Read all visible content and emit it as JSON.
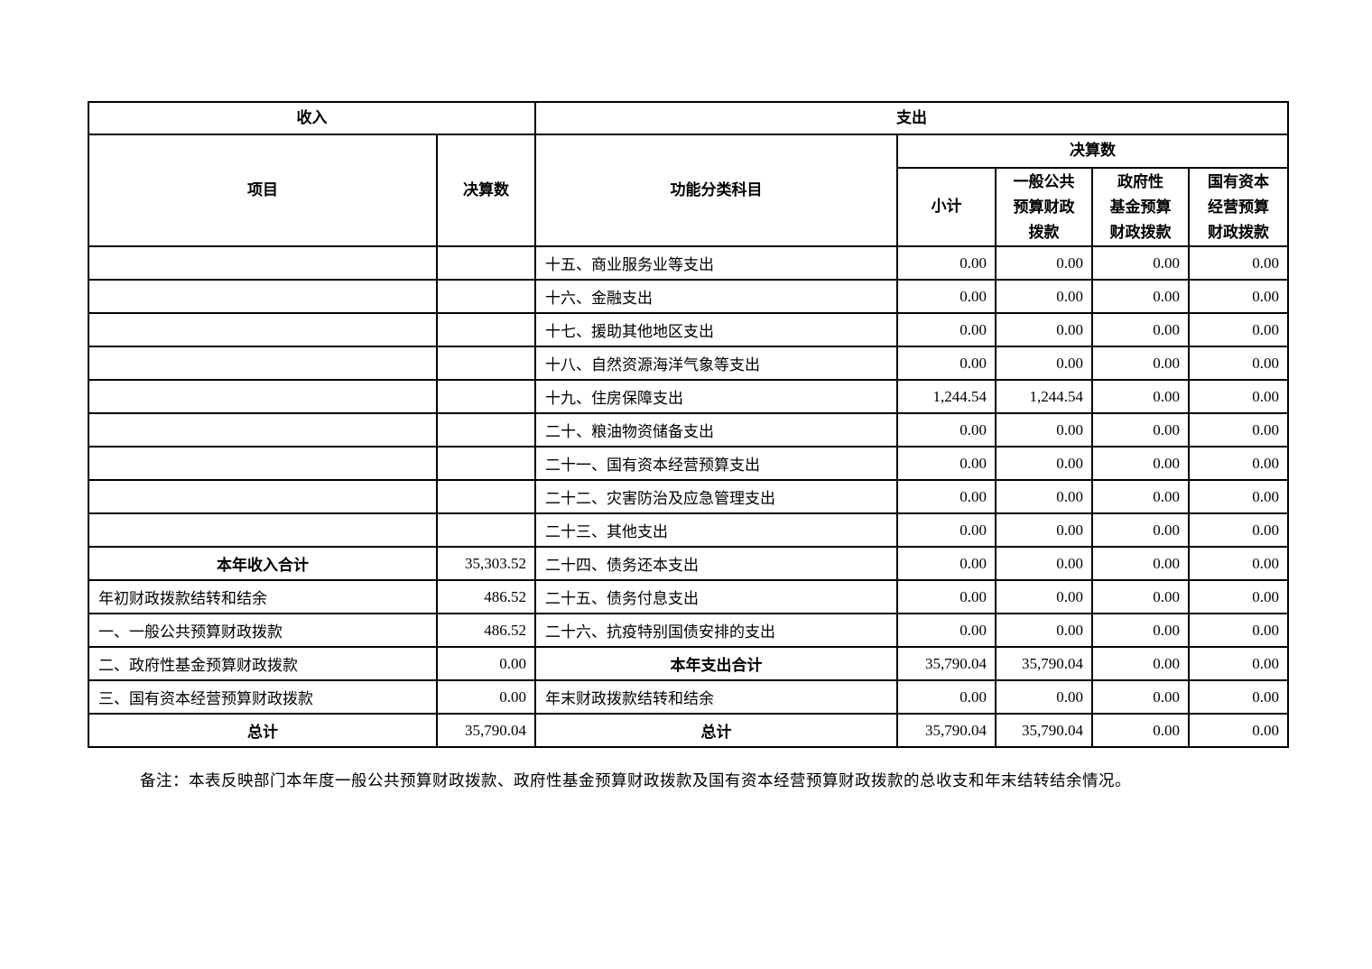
{
  "table": {
    "header": {
      "income_section": "收入",
      "expense_section": "支出",
      "item": "项目",
      "income_amount": "决算数",
      "function_category": "功能分类科目",
      "expense_amount_group": "决算数",
      "subtotal": "小计",
      "general_public_budget": "一般公共\n预算财政\n拨款",
      "government_fund": "政府性\n基金预算\n财政拨款",
      "state_capital": "国有资本\n经营预算\n财政拨款"
    },
    "rows": [
      {
        "income": {
          "label": "",
          "value": ""
        },
        "expense": {
          "label": "十五、商业服务业等支出",
          "values": [
            "0.00",
            "0.00",
            "0.00",
            "0.00"
          ]
        }
      },
      {
        "income": {
          "label": "",
          "value": ""
        },
        "expense": {
          "label": "十六、金融支出",
          "values": [
            "0.00",
            "0.00",
            "0.00",
            "0.00"
          ]
        }
      },
      {
        "income": {
          "label": "",
          "value": ""
        },
        "expense": {
          "label": "十七、援助其他地区支出",
          "values": [
            "0.00",
            "0.00",
            "0.00",
            "0.00"
          ]
        }
      },
      {
        "income": {
          "label": "",
          "value": ""
        },
        "expense": {
          "label": "十八、自然资源海洋气象等支出",
          "values": [
            "0.00",
            "0.00",
            "0.00",
            "0.00"
          ]
        }
      },
      {
        "income": {
          "label": "",
          "value": ""
        },
        "expense": {
          "label": "十九、住房保障支出",
          "values": [
            "1,244.54",
            "1,244.54",
            "0.00",
            "0.00"
          ]
        }
      },
      {
        "income": {
          "label": "",
          "value": ""
        },
        "expense": {
          "label": "二十、粮油物资储备支出",
          "values": [
            "0.00",
            "0.00",
            "0.00",
            "0.00"
          ]
        }
      },
      {
        "income": {
          "label": "",
          "value": ""
        },
        "expense": {
          "label": "二十一、国有资本经营预算支出",
          "values": [
            "0.00",
            "0.00",
            "0.00",
            "0.00"
          ]
        }
      },
      {
        "income": {
          "label": "",
          "value": ""
        },
        "expense": {
          "label": "二十二、灾害防治及应急管理支出",
          "values": [
            "0.00",
            "0.00",
            "0.00",
            "0.00"
          ]
        }
      },
      {
        "income": {
          "label": "",
          "value": ""
        },
        "expense": {
          "label": "二十三、其他支出",
          "values": [
            "0.00",
            "0.00",
            "0.00",
            "0.00"
          ]
        }
      },
      {
        "income": {
          "label": "本年收入合计",
          "value": "35,303.52",
          "bold": true
        },
        "expense": {
          "label": "二十四、债务还本支出",
          "values": [
            "0.00",
            "0.00",
            "0.00",
            "0.00"
          ]
        }
      },
      {
        "income": {
          "label": "年初财政拨款结转和结余",
          "value": "486.52"
        },
        "expense": {
          "label": "二十五、债务付息支出",
          "values": [
            "0.00",
            "0.00",
            "0.00",
            "0.00"
          ]
        }
      },
      {
        "income": {
          "label": "一、一般公共预算财政拨款",
          "value": "486.52"
        },
        "expense": {
          "label": "二十六、抗疫特别国债安排的支出",
          "values": [
            "0.00",
            "0.00",
            "0.00",
            "0.00"
          ]
        }
      },
      {
        "income": {
          "label": "二、政府性基金预算财政拨款",
          "value": "0.00"
        },
        "expense": {
          "label": "本年支出合计",
          "values": [
            "35,790.04",
            "35,790.04",
            "0.00",
            "0.00"
          ],
          "bold": true
        }
      },
      {
        "income": {
          "label": "三、国有资本经营预算财政拨款",
          "value": "0.00"
        },
        "expense": {
          "label": "年末财政拨款结转和结余",
          "values": [
            "0.00",
            "0.00",
            "0.00",
            "0.00"
          ]
        }
      },
      {
        "income": {
          "label": "总计",
          "value": "35,790.04",
          "bold": true
        },
        "expense": {
          "label": "总计",
          "values": [
            "35,790.04",
            "35,790.04",
            "0.00",
            "0.00"
          ],
          "bold": true
        }
      }
    ]
  },
  "note": "备注：本表反映部门本年度一般公共预算财政拨款、政府性基金预算财政拨款及国有资本经营预算财政拨款的总收支和年末结转结余情况。"
}
